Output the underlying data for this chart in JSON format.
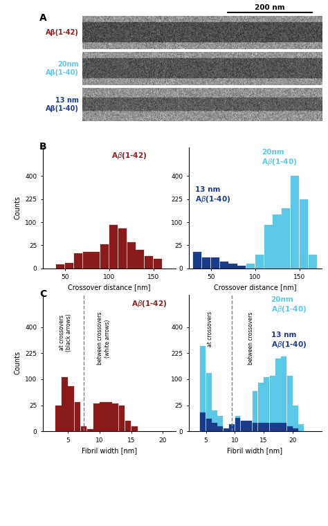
{
  "panel_B_left": {
    "label": "Aβ(1-42)",
    "color": "#8B1A1A",
    "bin_edges": [
      30,
      40,
      50,
      60,
      70,
      80,
      90,
      100,
      110,
      120,
      130,
      140,
      150,
      160
    ],
    "counts": [
      0,
      4,
      6,
      16,
      18,
      18,
      27,
      90,
      80,
      35,
      20,
      13,
      10
    ],
    "xlim": [
      25,
      175
    ],
    "xticks": [
      50,
      100,
      150
    ],
    "yticks": [
      0,
      25,
      100,
      225,
      400
    ],
    "ylabel": "Counts",
    "xlabel": "Crossover distance [nm]"
  },
  "panel_B_right_light": {
    "label": "20nm Aβ(1-40)",
    "color": "#5BC8E8",
    "bin_edges": [
      30,
      40,
      50,
      60,
      70,
      80,
      90,
      100,
      110,
      120,
      130,
      140,
      150,
      160,
      170
    ],
    "counts": [
      0,
      0,
      0,
      0,
      0,
      0,
      5,
      15,
      90,
      140,
      175,
      400,
      225,
      15
    ],
    "xlim": [
      25,
      175
    ],
    "xticks": [
      50,
      100,
      150
    ],
    "yticks": [
      0,
      25,
      100,
      225,
      400
    ],
    "xlabel": "Crossover distance [nm]"
  },
  "panel_B_right_dark": {
    "label": "13 nm Aβ(1-40)",
    "color": "#1A3A8A",
    "bin_edges": [
      30,
      40,
      50,
      60,
      70,
      80,
      90,
      100
    ],
    "counts": [
      18,
      12,
      12,
      7,
      5,
      3,
      0
    ]
  },
  "panel_C_left": {
    "label": "Aβ(1-42)",
    "color": "#8B1A1A",
    "bin_edges": [
      2,
      3,
      4,
      5,
      6,
      7,
      8,
      9,
      10,
      11,
      12,
      13,
      14,
      15,
      16
    ],
    "counts": [
      0,
      25,
      110,
      80,
      35,
      5,
      2,
      30,
      35,
      35,
      30,
      25,
      10,
      5
    ],
    "dashed_x": 7.5,
    "xlim": [
      1,
      22
    ],
    "xticks": [
      5,
      10,
      15,
      20
    ],
    "yticks": [
      0,
      25,
      100,
      225,
      400
    ],
    "ylabel": "Counts",
    "xlabel": "Fibril width [nm]"
  },
  "panel_C_right_light": {
    "label": "20nm Aβ(1-40)",
    "color": "#5BC8E8",
    "bin_edges": [
      3,
      4,
      5,
      6,
      7,
      8,
      9,
      10,
      11,
      12,
      13,
      14,
      15,
      16,
      17,
      18,
      19,
      20,
      21,
      22,
      23
    ],
    "counts": [
      0,
      275,
      130,
      20,
      15,
      0,
      0,
      15,
      10,
      10,
      65,
      90,
      110,
      115,
      200,
      210,
      115,
      25,
      7,
      0
    ],
    "dashed_x": 9.5,
    "xlim": [
      2,
      25
    ],
    "xticks": [
      5,
      10,
      15,
      20
    ],
    "yticks": [
      0,
      25,
      100,
      225,
      400
    ],
    "xlabel": "Fibril width [nm]"
  },
  "panel_C_right_dark": {
    "label": "13 nm Aβ(1-40)",
    "color": "#1A3A8A",
    "bin_edges": [
      3,
      4,
      5,
      6,
      7,
      8,
      9,
      10,
      11,
      12,
      13,
      14,
      15,
      16,
      17,
      18,
      19,
      20,
      21
    ],
    "counts": [
      0,
      18,
      12,
      8,
      5,
      3,
      7,
      13,
      10,
      10,
      8,
      8,
      8,
      8,
      8,
      8,
      5,
      3
    ]
  },
  "em_labels": [
    {
      "text": "Aβ(1-42)",
      "color": "#8B1A1A"
    },
    {
      "text": "20nm\nAβ(1-40)",
      "color": "#5BC8E8"
    },
    {
      "text": "13 nm\nAβ(1-40)",
      "color": "#1A3A8A"
    }
  ]
}
